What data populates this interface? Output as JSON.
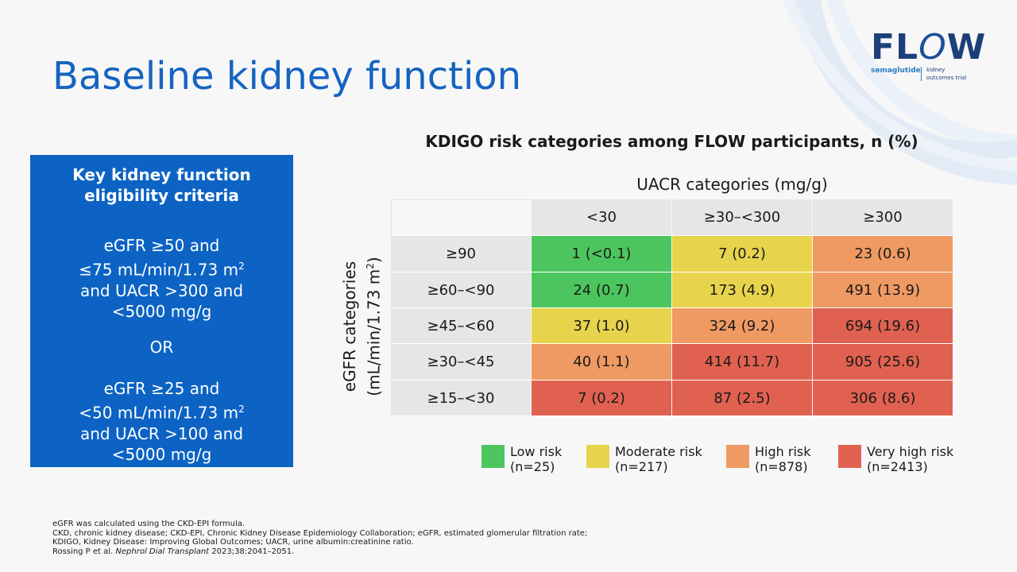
{
  "slide": {
    "title": "Baseline kidney function",
    "logo": {
      "word_prefix": "FL",
      "word_o": "O",
      "word_suffix": "W",
      "drug": "semaglutide",
      "subtitle_line1": "kidney",
      "subtitle_line2": "outcomes trial",
      "color": "#1c3f7a"
    },
    "criteria_box": {
      "title_line1": "Key kidney function",
      "title_line2": "eligibility criteria",
      "option1_line1": "eGFR ≥50 and",
      "option1_line2": "≤75 mL/min/1.73 m",
      "option1_line2_sup": "2",
      "option1_line3": "and UACR >300 and",
      "option1_line4": "<5000 mg/g",
      "separator": "OR",
      "option2_line1": "eGFR ≥25 and",
      "option2_line2": "<50 mL/min/1.73 m",
      "option2_line2_sup": "2",
      "option2_line3": "and UACR >100 and",
      "option2_line4": "<5000 mg/g",
      "color": "#0c63c4"
    },
    "table": {
      "title": "KDIGO risk categories among FLOW participants, n (%)",
      "col_axis_label": "UACR categories (mg/g)",
      "row_axis_label_line1": "eGFR categories",
      "row_axis_label_line2": "(mL/min/1.73 m",
      "row_axis_label_sup": "2",
      "row_axis_label_close": ")",
      "columns": [
        "<30",
        "≥30–<300",
        "≥300"
      ],
      "rows": [
        {
          "label": "≥90",
          "cells": [
            {
              "value": "1 (<0.1)",
              "risk": "green"
            },
            {
              "value": "7 (0.2)",
              "risk": "yellow"
            },
            {
              "value": "23 (0.6)",
              "risk": "orange"
            }
          ]
        },
        {
          "label": "≥60–<90",
          "cells": [
            {
              "value": "24 (0.7)",
              "risk": "green"
            },
            {
              "value": "173 (4.9)",
              "risk": "yellow"
            },
            {
              "value": "491 (13.9)",
              "risk": "orange"
            }
          ]
        },
        {
          "label": "≥45–<60",
          "cells": [
            {
              "value": "37 (1.0)",
              "risk": "yellow"
            },
            {
              "value": "324 (9.2)",
              "risk": "orange"
            },
            {
              "value": "694 (19.6)",
              "risk": "red"
            }
          ]
        },
        {
          "label": "≥30–<45",
          "cells": [
            {
              "value": "40 (1.1)",
              "risk": "orange"
            },
            {
              "value": "414 (11.7)",
              "risk": "red"
            },
            {
              "value": "905 (25.6)",
              "risk": "red"
            }
          ]
        },
        {
          "label": "≥15–<30",
          "cells": [
            {
              "value": "7 (0.2)",
              "risk": "red"
            },
            {
              "value": "87 (2.5)",
              "risk": "red"
            },
            {
              "value": "306 (8.6)",
              "risk": "red"
            }
          ]
        }
      ]
    },
    "legend": [
      {
        "label": "Low risk",
        "n": "(n=25)",
        "color": "#4dc55e"
      },
      {
        "label": "Moderate risk",
        "n": "(n=217)",
        "color": "#e8d44c"
      },
      {
        "label": "High risk",
        "n": "(n=878)",
        "color": "#ef9a62"
      },
      {
        "label": "Very high risk",
        "n": "(n=2413)",
        "color": "#e06150"
      }
    ],
    "footnotes": {
      "line1": "eGFR was calculated using the CKD-EPI formula.",
      "line2": "CKD, chronic kidney disease; CKD-EPI, Chronic Kidney Disease Epidemiology Collaboration; eGFR, estimated glomerular filtration rate;",
      "line3": "KDIGO, Kidney Disease: Improving Global Outcomes; UACR, urine albumin:creatinine ratio.",
      "ref_authors": "Rossing P et al. ",
      "ref_journal": "Nephrol Dial Transplant",
      "ref_detail": " 2023;38:2041–2051."
    }
  }
}
